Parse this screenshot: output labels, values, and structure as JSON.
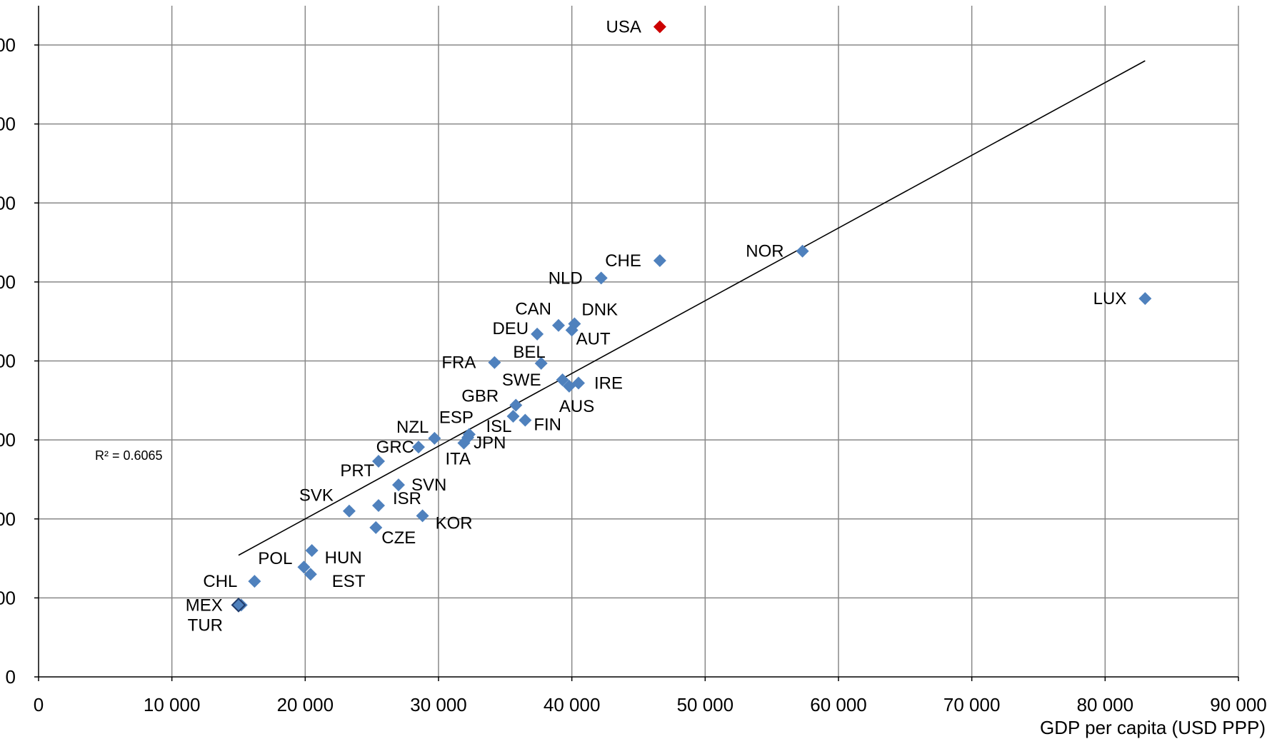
{
  "chart_data": {
    "type": "scatter",
    "xlabel": "GDP per capita (USD PPP)",
    "ylabel": "",
    "xlim": [
      0,
      90000
    ],
    "ylim": [
      0,
      8000
    ],
    "x_ticks": [
      "0",
      "10 000",
      "20 000",
      "30 000",
      "40 000",
      "50 000",
      "60 000",
      "70 000",
      "80 000",
      "90 000"
    ],
    "y_ticks": [
      "0",
      "00",
      "00",
      "00",
      "00",
      "00",
      "00",
      "00",
      "00"
    ],
    "grid": true,
    "r_squared_label": "R² = 0.6065",
    "trendline": {
      "x": [
        15000,
        83000
      ],
      "y": [
        1540,
        7800
      ]
    },
    "colors": {
      "point": "#4F81BD",
      "highlight": "#CC0000",
      "grid": "#888888",
      "trend": "#000000"
    },
    "points": [
      {
        "label": "USA",
        "x": 46600,
        "y": 8230,
        "highlight": true
      },
      {
        "label": "NOR",
        "x": 57300,
        "y": 5390
      },
      {
        "label": "LUX",
        "x": 83000,
        "y": 4790
      },
      {
        "label": "CHE",
        "x": 46600,
        "y": 5270
      },
      {
        "label": "NLD",
        "x": 42200,
        "y": 5050
      },
      {
        "label": "CAN",
        "x": 39000,
        "y": 4450
      },
      {
        "label": "DNK",
        "x": 40200,
        "y": 4470
      },
      {
        "label": "DEU",
        "x": 37400,
        "y": 4340
      },
      {
        "label": "AUT",
        "x": 40000,
        "y": 4390
      },
      {
        "label": "FRA",
        "x": 34200,
        "y": 3980
      },
      {
        "label": "BEL",
        "x": 37700,
        "y": 3970
      },
      {
        "label": "IRE",
        "x": 40500,
        "y": 3720
      },
      {
        "label": "SWE",
        "x": 39300,
        "y": 3760
      },
      {
        "label": "AUS",
        "x": 39800,
        "y": 3680
      },
      {
        "label": "GBR",
        "x": 35800,
        "y": 3440
      },
      {
        "label": "FIN",
        "x": 36500,
        "y": 3250
      },
      {
        "label": "ISL",
        "x": 35600,
        "y": 3300
      },
      {
        "label": "NZL",
        "x": 29700,
        "y": 3020
      },
      {
        "label": "ESP",
        "x": 32300,
        "y": 3070
      },
      {
        "label": "GRC",
        "x": 28500,
        "y": 2910
      },
      {
        "label": "JPN",
        "x": 32200,
        "y": 3030
      },
      {
        "label": "ITA",
        "x": 31900,
        "y": 2960
      },
      {
        "label": "PRT",
        "x": 25500,
        "y": 2730
      },
      {
        "label": "SVN",
        "x": 27000,
        "y": 2430
      },
      {
        "label": "ISR",
        "x": 25500,
        "y": 2170
      },
      {
        "label": "SVK",
        "x": 23300,
        "y": 2100
      },
      {
        "label": "KOR",
        "x": 28800,
        "y": 2040
      },
      {
        "label": "CZE",
        "x": 25300,
        "y": 1890
      },
      {
        "label": "HUN",
        "x": 20500,
        "y": 1600
      },
      {
        "label": "POL",
        "x": 19900,
        "y": 1390
      },
      {
        "label": "EST",
        "x": 20400,
        "y": 1300
      },
      {
        "label": "CHL",
        "x": 16200,
        "y": 1210
      },
      {
        "label": "MEX",
        "x": 15200,
        "y": 910
      },
      {
        "label": "TUR",
        "x": 15000,
        "y": 910,
        "outlined": true
      }
    ]
  }
}
